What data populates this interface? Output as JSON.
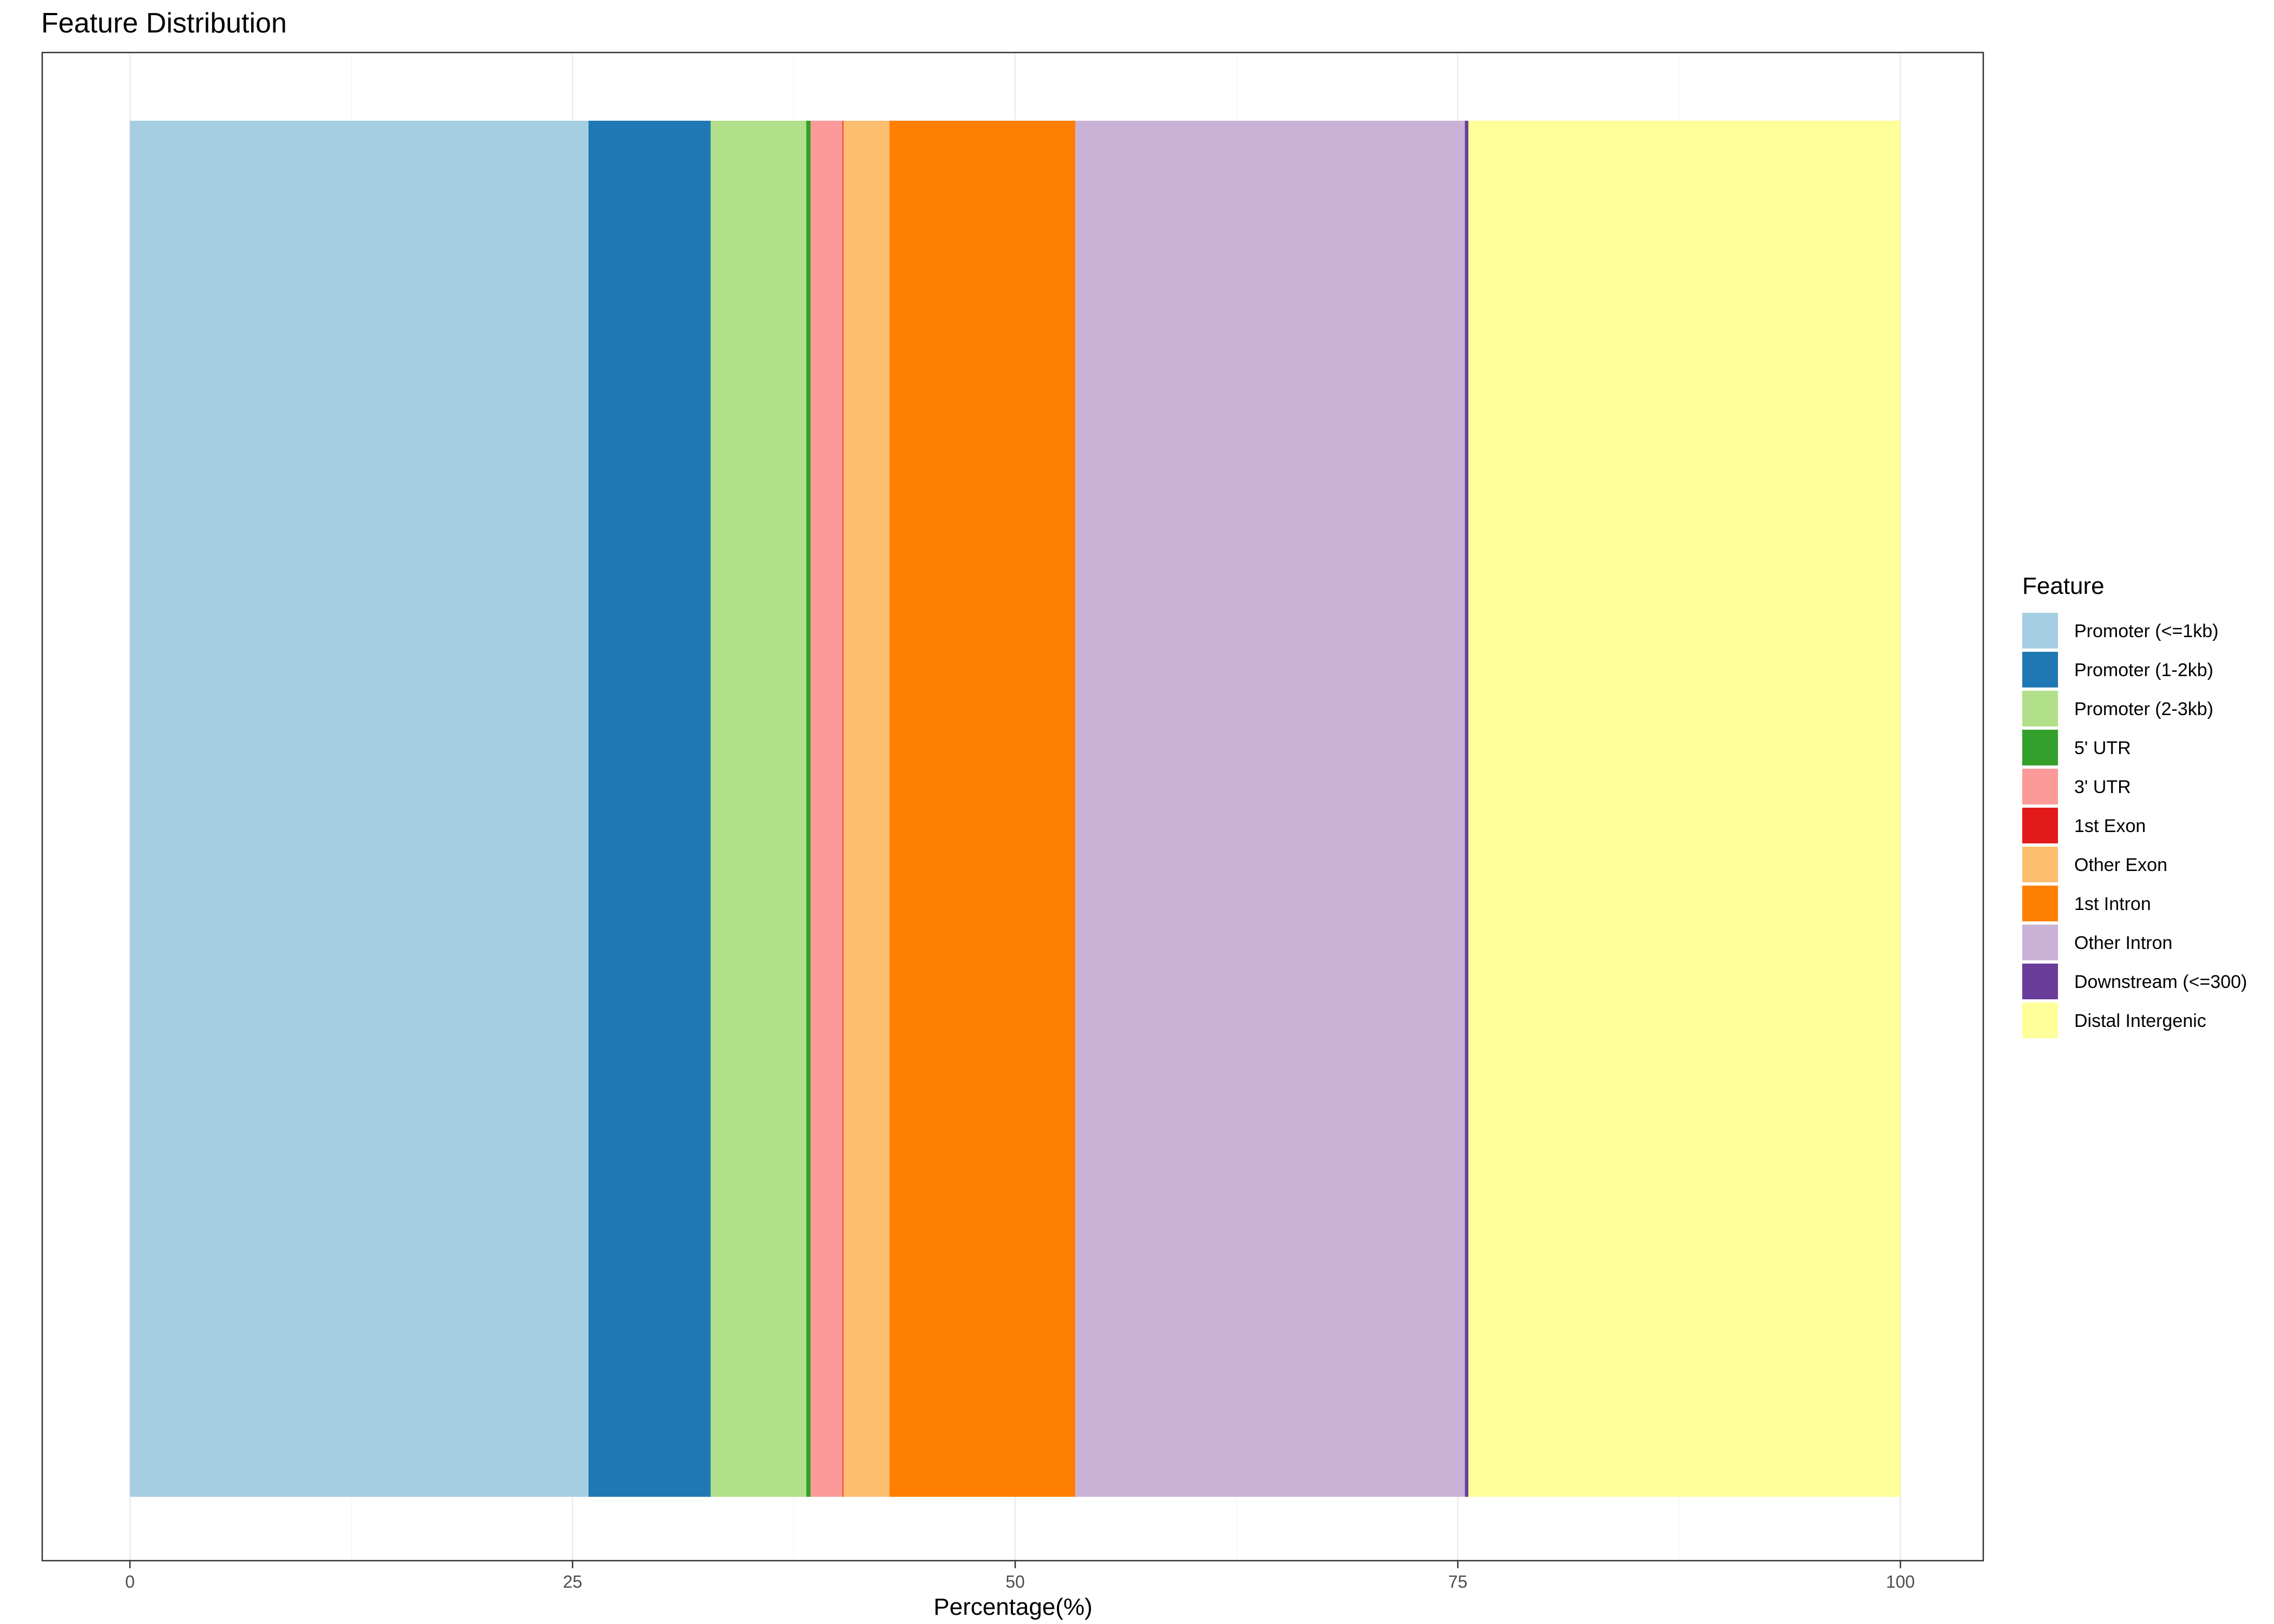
{
  "chart_data": {
    "type": "bar",
    "orientation": "horizontal",
    "stacked": true,
    "title": "Feature Distribution",
    "xlabel": "Percentage(%)",
    "ylabel": "",
    "xlim": [
      0,
      100
    ],
    "xticks": [
      0,
      25,
      50,
      75,
      100
    ],
    "grid": true,
    "legend_title": "Feature",
    "legend_position": "right",
    "series": [
      {
        "name": "Promoter (<=1kb)",
        "value": 25.9,
        "color": "#A6CEE3"
      },
      {
        "name": "Promoter (1-2kb)",
        "value": 6.9,
        "color": "#1F78B4"
      },
      {
        "name": "Promoter (2-3kb)",
        "value": 5.4,
        "color": "#B2DF8A"
      },
      {
        "name": "5' UTR",
        "value": 0.25,
        "color": "#33A02C"
      },
      {
        "name": "3' UTR",
        "value": 1.8,
        "color": "#FB9A99"
      },
      {
        "name": "1st Exon",
        "value": 0.05,
        "color": "#E31A1C"
      },
      {
        "name": "Other Exon",
        "value": 2.6,
        "color": "#FDBF6F"
      },
      {
        "name": "1st Intron",
        "value": 10.5,
        "color": "#FF7F00"
      },
      {
        "name": "Other Intron",
        "value": 22.0,
        "color": "#CAB2D6"
      },
      {
        "name": "Downstream (<=300)",
        "value": 0.2,
        "color": "#6A3D9A"
      },
      {
        "name": "Distal Intergenic",
        "value": 24.4,
        "color": "#FFFF99"
      }
    ]
  }
}
